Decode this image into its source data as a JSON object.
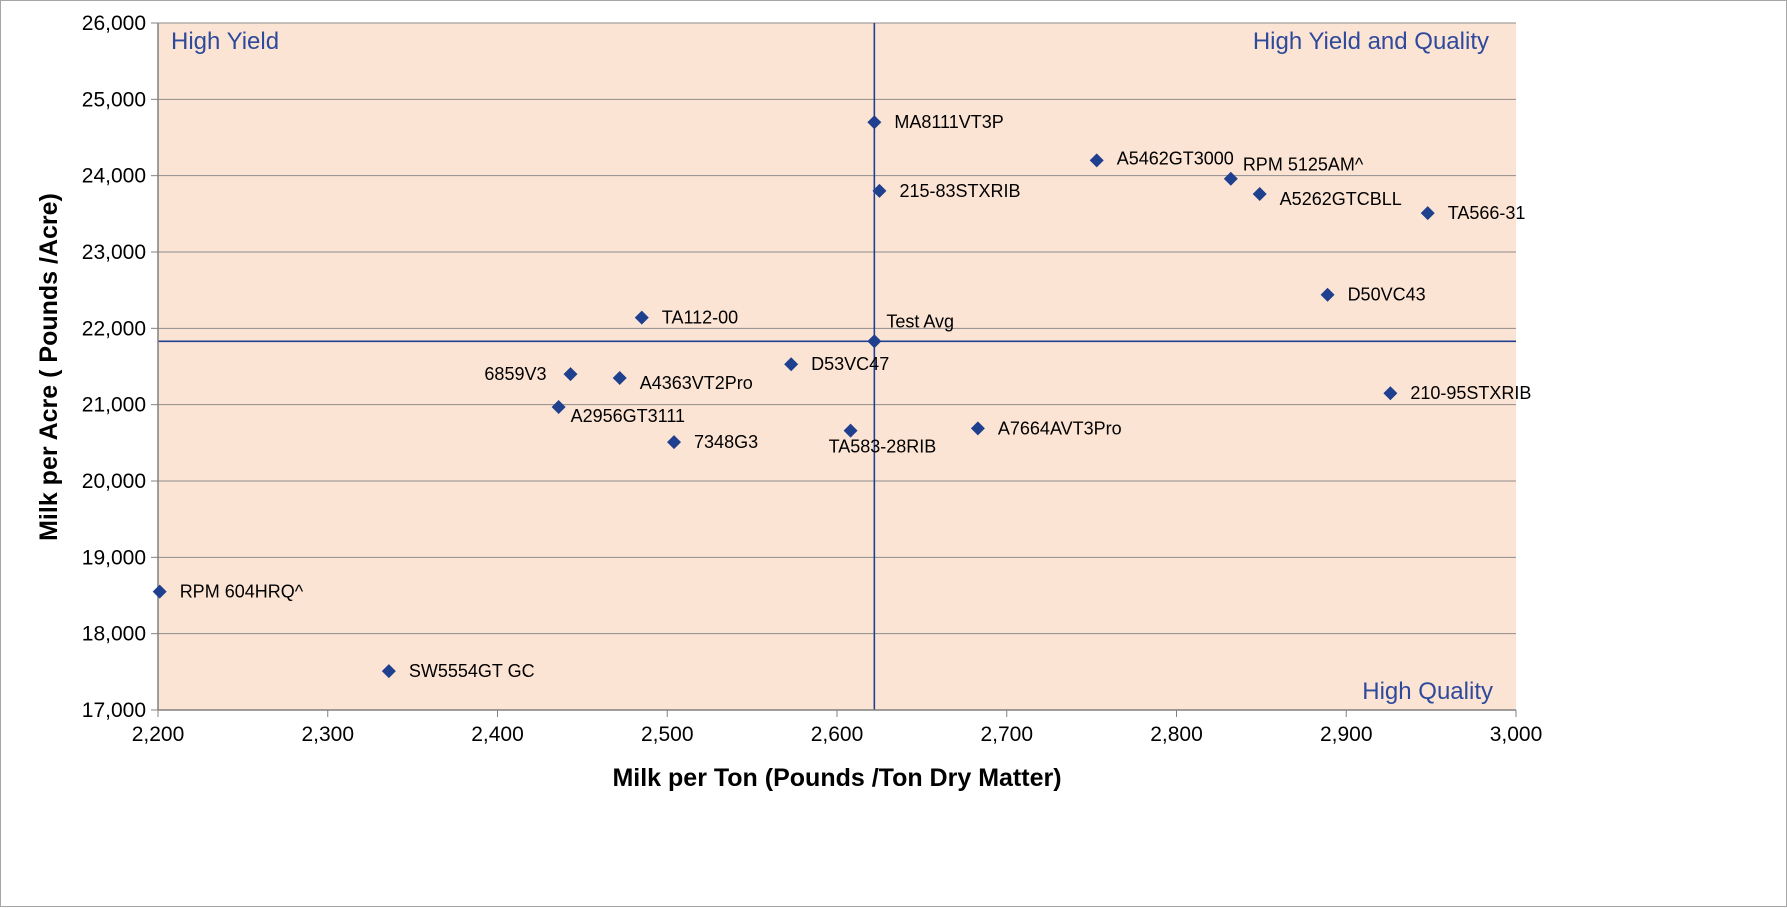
{
  "chart_data": {
    "type": "scatter",
    "title": "",
    "xlabel": "Milk per Ton (Pounds /Ton Dry Matter)",
    "ylabel": "Milk per Acre ( Pounds /Acre)",
    "xlim": [
      2200,
      3000
    ],
    "ylim": [
      17000,
      26000
    ],
    "x_ticks": [
      2200,
      2300,
      2400,
      2500,
      2600,
      2700,
      2800,
      2900,
      3000
    ],
    "x_tick_labels": [
      "2,200",
      "2,300",
      "2,400",
      "2,500",
      "2,600",
      "2,700",
      "2,800",
      "2,900",
      "3,000"
    ],
    "y_ticks": [
      17000,
      18000,
      19000,
      20000,
      21000,
      22000,
      23000,
      24000,
      25000,
      26000
    ],
    "y_tick_labels": [
      "17,000",
      "18,000",
      "19,000",
      "20,000",
      "21,000",
      "22,000",
      "23,000",
      "24,000",
      "25,000",
      "26,000"
    ],
    "grid": "horizontal",
    "reference_lines": {
      "x": 2622,
      "y": 21830
    },
    "quadrant_labels": {
      "top_left": "High Yield",
      "top_right": "High Yield and Quality",
      "bottom_right": "High Quality"
    },
    "points": [
      {
        "label": "MA8111VT3P",
        "x": 2622,
        "y": 24700
      },
      {
        "label": "A5462GT3000",
        "x": 2753,
        "y": 24200
      },
      {
        "label": "RPM 5125AM^",
        "x": 2832,
        "y": 23960
      },
      {
        "label": "215-83STXRIB",
        "x": 2625,
        "y": 23800
      },
      {
        "label": "A5262GTCBLL",
        "x": 2849,
        "y": 23760
      },
      {
        "label": "TA566-31",
        "x": 2948,
        "y": 23510
      },
      {
        "label": "D50VC43",
        "x": 2889,
        "y": 22440
      },
      {
        "label": "TA112-00",
        "x": 2485,
        "y": 22140
      },
      {
        "label": "Test Avg",
        "x": 2622,
        "y": 21830
      },
      {
        "label": "D53VC47",
        "x": 2573,
        "y": 21530
      },
      {
        "label": "6859V3",
        "x": 2443,
        "y": 21400
      },
      {
        "label": "A4363VT2Pro",
        "x": 2472,
        "y": 21350
      },
      {
        "label": "210-95STXRIB",
        "x": 2926,
        "y": 21150
      },
      {
        "label": "A2956GT3111",
        "x": 2436,
        "y": 20970
      },
      {
        "label": "A7664AVT3Pro",
        "x": 2683,
        "y": 20690
      },
      {
        "label": "TA583-28RIB",
        "x": 2608,
        "y": 20660
      },
      {
        "label": "7348G3",
        "x": 2504,
        "y": 20510
      },
      {
        "label": "RPM 604HRQ^",
        "x": 2201,
        "y": 18550
      },
      {
        "label": "SW5554GT GC",
        "x": 2336,
        "y": 17510
      }
    ]
  },
  "colors": {
    "plot_background": "#fce4d4",
    "marker": "#1f3f8f",
    "reference_line": "#1f3f8f",
    "gridline": "#8c8c8c",
    "quadrant_text": "#2e4a9c",
    "axis": "#808080"
  }
}
